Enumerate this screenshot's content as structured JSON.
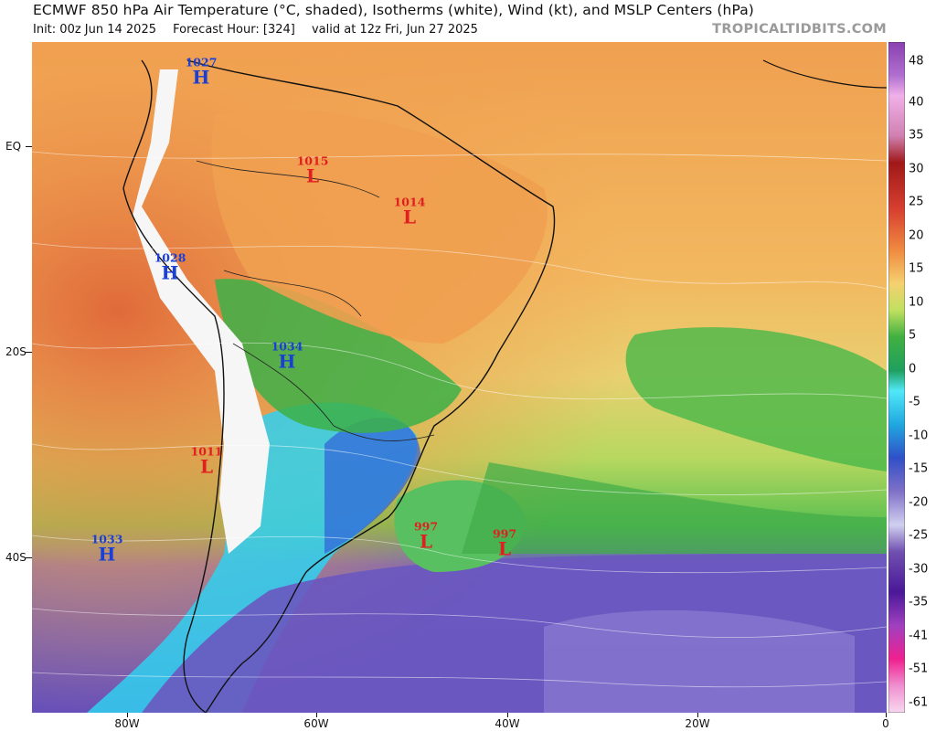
{
  "header": {
    "title": "ECMWF 850 hPa Air Temperature (°C, shaded), Isotherms (white), Wind (kt), and MSLP Centers (hPa)",
    "init": "Init: 00z Jun 14 2025",
    "forecast_hour": "Forecast Hour: [324]",
    "valid": "valid at 12z Fri, Jun 27 2025",
    "brand": "TROPICALTIDBITS.COM"
  },
  "axes": {
    "y_labels": [
      "EQ",
      "20S",
      "40S"
    ],
    "x_labels": [
      "80W",
      "60W",
      "40W",
      "20W",
      "0"
    ]
  },
  "colorbar": {
    "labels": [
      "48",
      "40",
      "35",
      "30",
      "25",
      "20",
      "15",
      "10",
      "5",
      "0",
      "-5",
      "-10",
      "-15",
      "-20",
      "-25",
      "-30",
      "-35",
      "-41",
      "-51",
      "-61"
    ],
    "colors": [
      "#b8a0e0",
      "#9050c0",
      "#c080d8",
      "#e8b0e0",
      "#a01818",
      "#c83030",
      "#e06040",
      "#e88a3a",
      "#f2c060",
      "#f5e07a",
      "#b8d860",
      "#40b040",
      "#20a050",
      "#50e0f0",
      "#20b0e0",
      "#3060d8",
      "#7060c0",
      "#9080d0",
      "#c0c0e8",
      "#7050b0",
      "#5020a0",
      "#8040c0",
      "#e040a0",
      "#f080d0",
      "#f0b0e8"
    ]
  },
  "pressure_centers": [
    {
      "type": "H",
      "value": "1027"
    },
    {
      "type": "L",
      "value": "1015"
    },
    {
      "type": "L",
      "value": "1014"
    },
    {
      "type": "H",
      "value": "1028"
    },
    {
      "type": "H",
      "value": "1034"
    },
    {
      "type": "L",
      "value": "1011"
    },
    {
      "type": "L",
      "value": "997"
    },
    {
      "type": "L",
      "value": "997"
    },
    {
      "type": "H",
      "value": "1033"
    }
  ]
}
